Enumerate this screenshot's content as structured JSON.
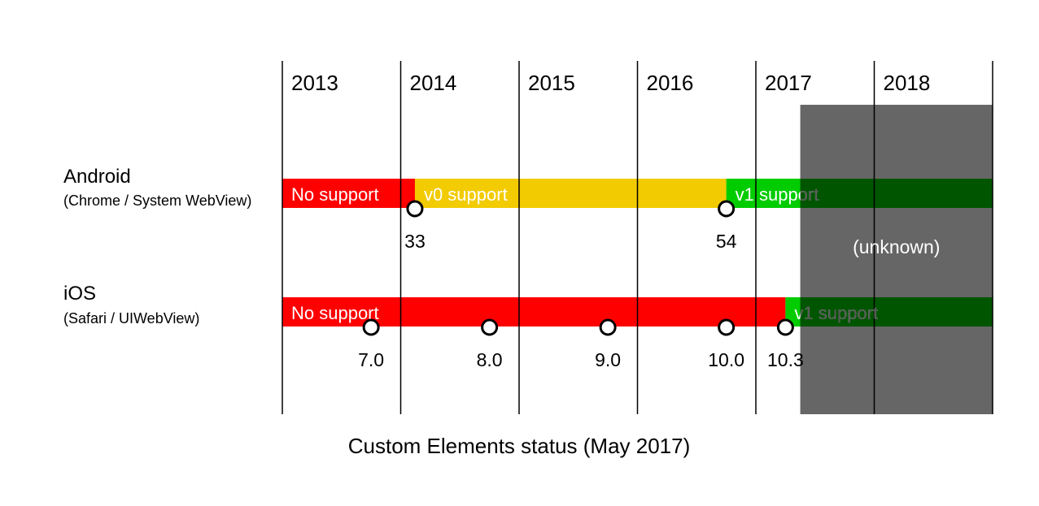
{
  "chart_data": {
    "type": "timeline",
    "title": "Custom Elements status (May 2017)",
    "x_range": [
      2013,
      2019
    ],
    "years": [
      "2013",
      "2014",
      "2015",
      "2016",
      "2017",
      "2018"
    ],
    "shaded_region": {
      "start": 2017.375,
      "end": 2019,
      "label": "(unknown)",
      "color": "#666666"
    },
    "rows": [
      {
        "platform": "Android",
        "subtitle": "(Chrome / System WebView)",
        "segments": [
          {
            "label": "No support",
            "start": 2013,
            "end": 2014.12,
            "color": "#ff0000"
          },
          {
            "label": "v0 support",
            "start": 2014.12,
            "end": 2016.75,
            "color": "#f2cb00"
          },
          {
            "label": "v1 support",
            "start": 2016.75,
            "end": 2019,
            "color": "#00cc00",
            "shaded_color": "#005500"
          }
        ],
        "releases": [
          {
            "version": "33",
            "date": 2014.12
          },
          {
            "version": "54",
            "date": 2016.75
          }
        ]
      },
      {
        "platform": "iOS",
        "subtitle": "(Safari / UIWebView)",
        "segments": [
          {
            "label": "No support",
            "start": 2013,
            "end": 2017.25,
            "color": "#ff0000"
          },
          {
            "label": "v1 support",
            "start": 2017.25,
            "end": 2019,
            "color": "#00cc00",
            "shaded_color": "#005500"
          }
        ],
        "releases": [
          {
            "version": "7.0",
            "date": 2013.75
          },
          {
            "version": "8.0",
            "date": 2014.75
          },
          {
            "version": "9.0",
            "date": 2015.75
          },
          {
            "version": "10.0",
            "date": 2016.75
          },
          {
            "version": "10.3",
            "date": 2017.25
          }
        ]
      }
    ]
  }
}
